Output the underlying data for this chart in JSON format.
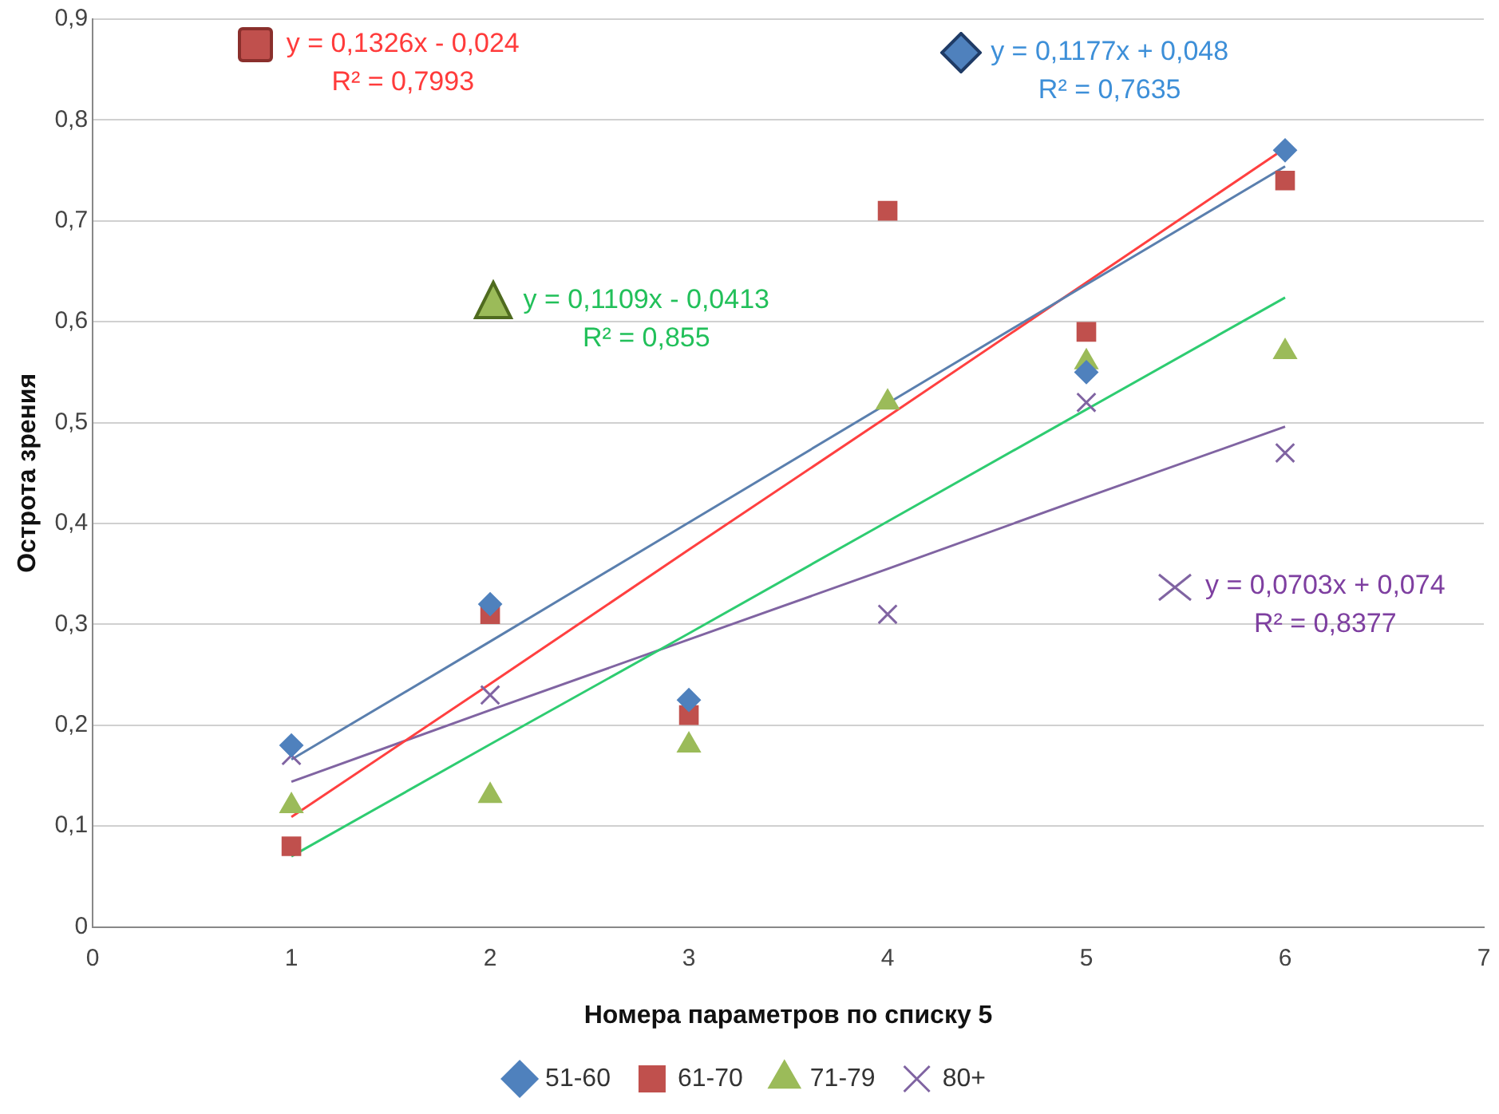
{
  "chart_data": {
    "type": "scatter",
    "xlabel": "Номера параметров по списку 5",
    "ylabel": "Острота зрения",
    "x": [
      1,
      2,
      3,
      4,
      5,
      6
    ],
    "series": [
      {
        "name": "51-60",
        "type": "scatter",
        "marker": "diamond",
        "color": "#4f81bd",
        "values": [
          0.18,
          0.32,
          0.225,
          null,
          0.55,
          0.77
        ]
      },
      {
        "name": "61-70",
        "type": "scatter",
        "marker": "square",
        "color": "#c0504d",
        "values": [
          0.08,
          0.31,
          0.21,
          0.71,
          0.59,
          0.74
        ]
      },
      {
        "name": "71-79",
        "type": "scatter",
        "marker": "triangle",
        "color": "#9bbb59",
        "values": [
          0.12,
          0.13,
          0.18,
          0.52,
          0.56,
          0.57
        ]
      },
      {
        "name": "80+",
        "type": "scatter",
        "marker": "cross",
        "color": "#8064a2",
        "values": [
          0.17,
          0.23,
          null,
          0.31,
          0.52,
          0.47
        ]
      },
      {
        "type": "line",
        "color": "#5a7fae",
        "values": [
          0.166,
          0.283,
          0.401,
          0.519,
          0.637,
          0.754
        ]
      },
      {
        "type": "line",
        "color": "#ff4040",
        "values": [
          0.109,
          0.241,
          0.374,
          0.506,
          0.639,
          0.772
        ]
      },
      {
        "type": "line",
        "color": "#2ecc71",
        "values": [
          0.07,
          0.181,
          0.291,
          0.402,
          0.513,
          0.624
        ]
      },
      {
        "type": "line",
        "color": "#8064a2",
        "values": [
          0.144,
          0.215,
          0.285,
          0.355,
          0.426,
          0.496
        ]
      }
    ],
    "annotations": [
      "y = 0,1177x + 0,048\nR² = 0,7635",
      "y = 0,1326x - 0,024\nR² = 0,7993",
      "y = 0,1109x - 0,0413\nR² = 0,855",
      "y = 0,0703x + 0,074\nR² = 0,8377"
    ],
    "xlim": [
      0,
      7
    ],
    "xticks": [
      0,
      1,
      2,
      3,
      4,
      5,
      6,
      7
    ],
    "ylim": [
      0,
      0.9
    ],
    "yticks": [
      0,
      {
        "value": 0.1,
        "label": "0,1"
      },
      {
        "value": 0.2,
        "label": "0,2"
      },
      {
        "value": 0.3,
        "label": "0,3"
      },
      {
        "value": 0.4,
        "label": "0,4"
      },
      {
        "value": 0.5,
        "label": "0,5"
      },
      {
        "value": 0.6,
        "label": "0,6"
      },
      {
        "value": 0.7,
        "label": "0,7"
      },
      {
        "value": 0.8,
        "label": "0,8"
      },
      {
        "value": 0.9,
        "label": "0,9"
      }
    ],
    "grid": "y",
    "legend": "bottom"
  }
}
